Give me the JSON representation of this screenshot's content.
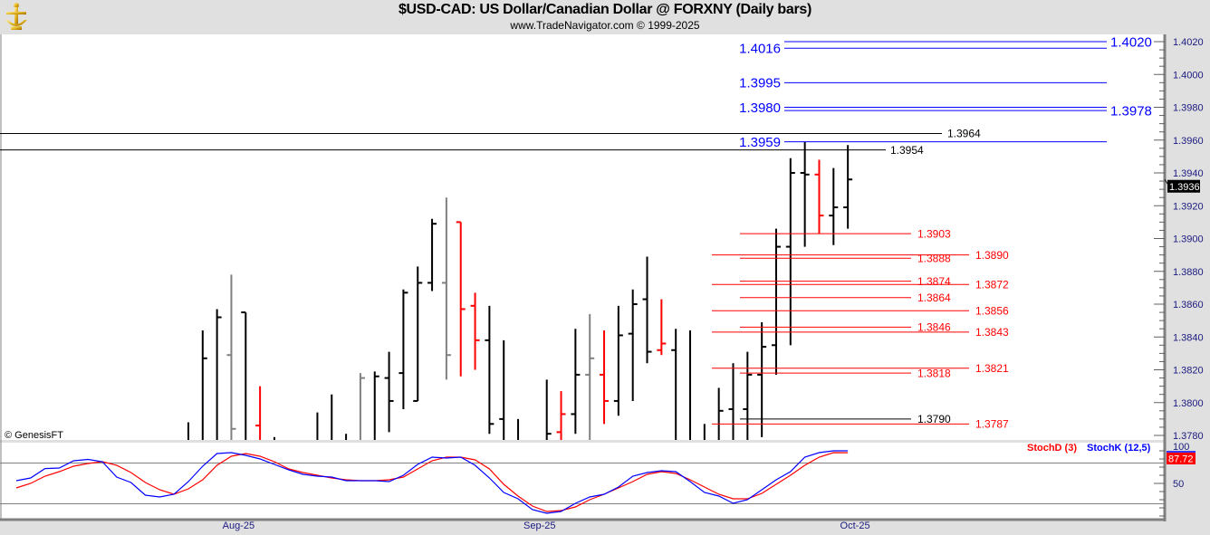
{
  "header": {
    "title": "$USD-CAD:  US Dollar/Canadian Dollar @ FORXNY  (Daily bars)",
    "subtitle": "www.TradeNavigator.com © 1999-2025"
  },
  "watermark": "© GenesisFT",
  "colors": {
    "up": "#000000",
    "down": "#ff0000",
    "neutral": "#808080",
    "blue_levels": "#0000ff",
    "stoch_d": "#ff0000",
    "stoch_k": "#0000ff",
    "axis_text": "#1a1a80"
  },
  "chart_data": [
    {
      "type": "ohlc",
      "title": "$USD-CAD:  US Dollar/Canadian Dollar @ FORXNY  (Daily bars)",
      "ylim": [
        1.3777,
        1.4024
      ],
      "y_ticks": [
        "1.4020",
        "1.4000",
        "1.3980",
        "1.3960",
        "1.3940",
        "1.3920",
        "1.3900",
        "1.3880",
        "1.3860",
        "1.3840",
        "1.3820",
        "1.3800",
        "1.3780"
      ],
      "x_ticks": [
        {
          "label": "Aug-25",
          "date": "2025-08-01"
        },
        {
          "label": "Sep-25",
          "date": "2025-09-01"
        },
        {
          "label": "Oct-25",
          "date": "2025-10-01"
        }
      ],
      "last_price": "1.3936",
      "dates": [
        "2025-07-10",
        "2025-07-11",
        "2025-07-14",
        "2025-07-15",
        "2025-07-16",
        "2025-07-17",
        "2025-07-18",
        "2025-07-21",
        "2025-07-22",
        "2025-07-23",
        "2025-07-24",
        "2025-07-25",
        "2025-07-28",
        "2025-07-29",
        "2025-07-30",
        "2025-07-31",
        "2025-08-01",
        "2025-08-04",
        "2025-08-05",
        "2025-08-06",
        "2025-08-07",
        "2025-08-08",
        "2025-08-11",
        "2025-08-12",
        "2025-08-13",
        "2025-08-14",
        "2025-08-15",
        "2025-08-18",
        "2025-08-19",
        "2025-08-20",
        "2025-08-21",
        "2025-08-22",
        "2025-08-25",
        "2025-08-26",
        "2025-08-27",
        "2025-08-28",
        "2025-08-29",
        "2025-09-01",
        "2025-09-02",
        "2025-09-03",
        "2025-09-04",
        "2025-09-05",
        "2025-09-08",
        "2025-09-09",
        "2025-09-10",
        "2025-09-11",
        "2025-09-12",
        "2025-09-15",
        "2025-09-16",
        "2025-09-17",
        "2025-09-18",
        "2025-09-19",
        "2025-09-22",
        "2025-09-23",
        "2025-09-24",
        "2025-09-25",
        "2025-09-26",
        "2025-09-29",
        "2025-09-30"
      ],
      "bars": [
        null,
        null,
        null,
        null,
        null,
        null,
        null,
        null,
        null,
        null,
        null,
        null,
        {
          "o": null,
          "h": 1.3788,
          "l": null,
          "c": null,
          "color": "black"
        },
        {
          "o": null,
          "h": 1.3844,
          "l": null,
          "c": 1.3827,
          "color": "black"
        },
        {
          "o": null,
          "h": 1.3857,
          "l": null,
          "c": 1.3852,
          "color": "black"
        },
        {
          "o": 1.3829,
          "h": 1.3878,
          "l": null,
          "c": 1.3784,
          "color": "gray"
        },
        {
          "o": 1.3855,
          "h": 1.3855,
          "l": null,
          "c": null,
          "color": "black"
        },
        {
          "o": 1.3786,
          "h": 1.381,
          "l": null,
          "c": null,
          "color": "red"
        },
        {
          "o": null,
          "h": 1.3779,
          "l": null,
          "c": null,
          "color": "black"
        },
        null,
        null,
        {
          "o": null,
          "h": 1.3794,
          "l": null,
          "c": null,
          "color": "black"
        },
        {
          "o": null,
          "h": 1.3805,
          "l": null,
          "c": null,
          "color": "black"
        },
        {
          "o": null,
          "h": 1.3781,
          "l": null,
          "c": null,
          "color": "black"
        },
        {
          "o": null,
          "h": 1.3818,
          "l": null,
          "c": 1.3815,
          "color": "gray"
        },
        {
          "o": null,
          "h": 1.3819,
          "l": null,
          "c": 1.3816,
          "color": "black"
        },
        {
          "o": 1.3815,
          "h": 1.3831,
          "l": 1.3782,
          "c": 1.3801,
          "color": "black"
        },
        {
          "o": 1.3818,
          "h": 1.3869,
          "l": 1.3796,
          "c": 1.3867,
          "color": "black"
        },
        {
          "o": 1.3801,
          "h": 1.3883,
          "l": 1.3801,
          "c": 1.3873,
          "color": "black"
        },
        {
          "o": 1.3873,
          "h": 1.3912,
          "l": 1.3868,
          "c": 1.3909,
          "color": "black"
        },
        {
          "o": 1.3873,
          "h": 1.3925,
          "l": 1.3814,
          "c": 1.3829,
          "color": "gray"
        },
        {
          "o": 1.391,
          "h": 1.391,
          "l": 1.3816,
          "c": 1.3857,
          "color": "red"
        },
        {
          "o": 1.3859,
          "h": 1.3867,
          "l": 1.382,
          "c": 1.3838,
          "color": "red"
        },
        {
          "o": 1.3838,
          "h": 1.3859,
          "l": 1.3781,
          "c": 1.3787,
          "color": "black"
        },
        {
          "o": 1.379,
          "h": 1.3838,
          "l": null,
          "c": null,
          "color": "black"
        },
        {
          "o": null,
          "h": 1.379,
          "l": null,
          "c": null,
          "color": "black"
        },
        null,
        {
          "o": null,
          "h": 1.3814,
          "l": null,
          "c": 1.3781,
          "color": "black"
        },
        {
          "o": 1.3782,
          "h": 1.3807,
          "l": null,
          "c": 1.3793,
          "color": "red"
        },
        {
          "o": 1.3793,
          "h": 1.3845,
          "l": 1.3781,
          "c": 1.3817,
          "color": "black"
        },
        {
          "o": 1.3817,
          "h": 1.3854,
          "l": null,
          "c": 1.3827,
          "color": "gray"
        },
        {
          "o": 1.3817,
          "h": 1.3844,
          "l": 1.3787,
          "c": 1.3801,
          "color": "red"
        },
        {
          "o": 1.3801,
          "h": 1.3859,
          "l": 1.3792,
          "c": 1.3841,
          "color": "black"
        },
        {
          "o": 1.3842,
          "h": 1.3869,
          "l": 1.3801,
          "c": 1.386,
          "color": "black"
        },
        {
          "o": 1.3863,
          "h": 1.3889,
          "l": 1.3824,
          "c": 1.3831,
          "color": "black"
        },
        {
          "o": 1.3832,
          "h": 1.3863,
          "l": 1.3829,
          "c": 1.3836,
          "color": "red"
        },
        {
          "o": 1.3832,
          "h": 1.3845,
          "l": null,
          "c": null,
          "color": "black"
        },
        {
          "o": null,
          "h": 1.3844,
          "l": null,
          "c": null,
          "color": "black"
        },
        {
          "o": null,
          "h": 1.3787,
          "l": null,
          "c": null,
          "color": "black"
        },
        {
          "o": null,
          "h": 1.3809,
          "l": null,
          "c": 1.3795,
          "color": "black"
        },
        {
          "o": 1.3796,
          "h": 1.3824,
          "l": null,
          "c": null,
          "color": "black"
        },
        {
          "o": 1.3796,
          "h": 1.3831,
          "l": null,
          "c": 1.3817,
          "color": "black"
        },
        {
          "o": 1.3817,
          "h": 1.3849,
          "l": 1.3779,
          "c": 1.3834,
          "color": "black"
        },
        {
          "o": 1.3835,
          "h": 1.3906,
          "l": 1.3817,
          "c": 1.3895,
          "color": "black"
        },
        {
          "o": 1.3895,
          "h": 1.3949,
          "l": 1.3835,
          "c": 1.394,
          "color": "black"
        },
        {
          "o": 1.394,
          "h": 1.3959,
          "l": 1.3895,
          "c": 1.3939,
          "color": "black"
        },
        {
          "o": 1.3939,
          "h": 1.3948,
          "l": 1.3903,
          "c": 1.3914,
          "color": "red"
        },
        {
          "o": 1.3914,
          "h": 1.3943,
          "l": 1.3896,
          "c": 1.3919,
          "color": "black"
        },
        {
          "o": 1.3919,
          "h": 1.3957,
          "l": 1.3906,
          "c": 1.3936,
          "color": "black"
        }
      ],
      "levels": [
        {
          "value": "1.4020",
          "group": "blue",
          "label_side": "right"
        },
        {
          "value": "1.4016",
          "group": "blue",
          "label_side": "left"
        },
        {
          "value": "1.3995",
          "group": "blue",
          "label_side": "left"
        },
        {
          "value": "1.3980",
          "group": "blue",
          "label_side": "left"
        },
        {
          "value": "1.3978",
          "group": "blue",
          "label_side": "right"
        },
        {
          "value": "1.3959",
          "group": "blue",
          "label_side": "left"
        },
        {
          "value": "1.3964",
          "group": "black-long",
          "label_side": "right"
        },
        {
          "value": "1.3954",
          "group": "black-short",
          "label_side": "right"
        },
        {
          "value": "1.3903",
          "group": "red-short",
          "label_side": "right"
        },
        {
          "value": "1.3888",
          "group": "red-short",
          "label_side": "right"
        },
        {
          "value": "1.3874",
          "group": "red-short",
          "label_side": "right"
        },
        {
          "value": "1.3864",
          "group": "red-short",
          "label_side": "right"
        },
        {
          "value": "1.3846",
          "group": "red-short",
          "label_side": "right"
        },
        {
          "value": "1.3818",
          "group": "red-short",
          "label_side": "right"
        },
        {
          "value": "1.3790",
          "group": "black-mid",
          "label_side": "right"
        },
        {
          "value": "1.3890",
          "group": "red-long",
          "label_side": "right"
        },
        {
          "value": "1.3872",
          "group": "red-long",
          "label_side": "right"
        },
        {
          "value": "1.3856",
          "group": "red-long",
          "label_side": "right"
        },
        {
          "value": "1.3843",
          "group": "red-long",
          "label_side": "right"
        },
        {
          "value": "1.3821",
          "group": "red-long",
          "label_side": "right"
        },
        {
          "value": "1.3787",
          "group": "red-long",
          "label_side": "right"
        }
      ]
    },
    {
      "type": "line",
      "ylim": [
        0,
        100
      ],
      "y_ticks": [
        "100",
        "50"
      ],
      "reference_lines": [
        75,
        25
      ],
      "last_value": "87.72",
      "series": [
        {
          "name": "StochD (3)",
          "color": "#ff0000",
          "values": [
            44.4,
            50,
            58.9,
            64.4,
            71.1,
            74.4,
            76.7,
            72.2,
            63.3,
            51.1,
            42.2,
            36.7,
            43.3,
            54.4,
            72.2,
            83.3,
            86.7,
            83.3,
            76.7,
            67.8,
            63.3,
            60,
            56.7,
            54.4,
            53.3,
            53.3,
            54.4,
            57.8,
            67.8,
            77.8,
            82.2,
            82.2,
            78.9,
            67.8,
            48.9,
            34.4,
            22.2,
            15.6,
            16.7,
            21.1,
            30,
            36.7,
            44.4,
            52.2,
            61.1,
            64.4,
            62.2,
            54.4,
            45.6,
            36.7,
            31.1,
            31.1,
            37.8,
            48.9,
            60,
            72.2,
            82.2,
            87.8,
            87.72
          ]
        },
        {
          "name": "StochK (12,5)",
          "color": "#0000ff",
          "values": [
            53.3,
            56.7,
            68.2,
            68.9,
            77.8,
            79.4,
            76.7,
            57.8,
            51.1,
            35.6,
            33.3,
            36.7,
            52.2,
            71.1,
            86.7,
            87.8,
            84.4,
            80,
            73.3,
            66.7,
            61.1,
            58.9,
            57.8,
            53.3,
            53.3,
            53.3,
            52.2,
            60,
            73.3,
            82.2,
            81.1,
            82.2,
            72.2,
            56.7,
            38.9,
            31.1,
            17.8,
            13.3,
            15.6,
            25.6,
            33.3,
            36.7,
            45.6,
            58.9,
            63.3,
            65.6,
            64.4,
            52.2,
            38.9,
            34.4,
            25.6,
            30,
            42.2,
            54.4,
            64.4,
            82.2,
            87.8,
            90,
            90
          ]
        }
      ]
    }
  ]
}
